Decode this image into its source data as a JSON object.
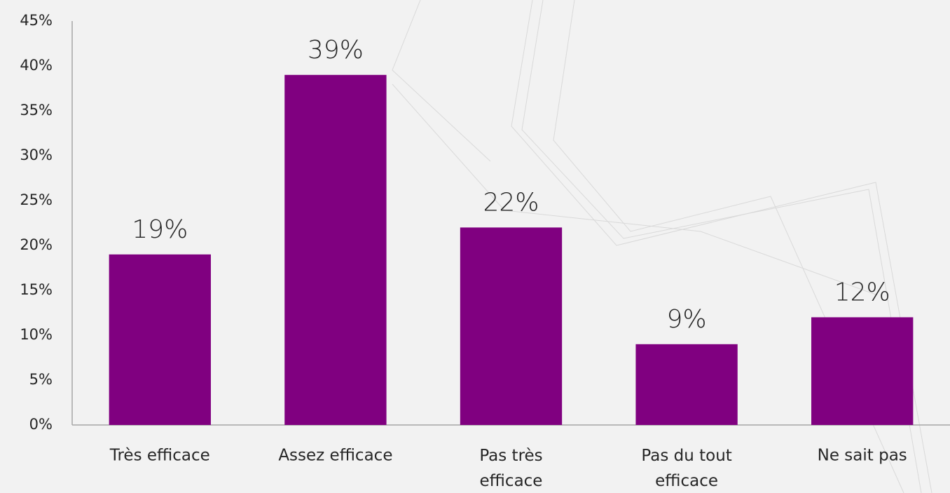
{
  "chart_data": {
    "type": "bar",
    "categories": [
      "Très efficace",
      "Assez efficace",
      "Pas très efficace",
      "Pas du tout efficace",
      "Ne sait pas"
    ],
    "values": [
      19,
      39,
      22,
      9,
      12
    ],
    "value_labels": [
      "19%",
      "39%",
      "22%",
      "9%",
      "12%"
    ],
    "color": "#800080",
    "ylim": [
      0,
      45
    ],
    "yticks": [
      {
        "value": 0,
        "label": "0%"
      },
      {
        "value": 5,
        "label": "5%"
      },
      {
        "value": 10,
        "label": "10%"
      },
      {
        "value": 15,
        "label": "15%"
      },
      {
        "value": 20,
        "label": "20%"
      },
      {
        "value": 25,
        "label": "25%"
      },
      {
        "value": 30,
        "label": "30%"
      },
      {
        "value": 35,
        "label": "35%"
      },
      {
        "value": 40,
        "label": "40%"
      },
      {
        "value": 45,
        "label": "45%"
      }
    ],
    "grid": false
  }
}
